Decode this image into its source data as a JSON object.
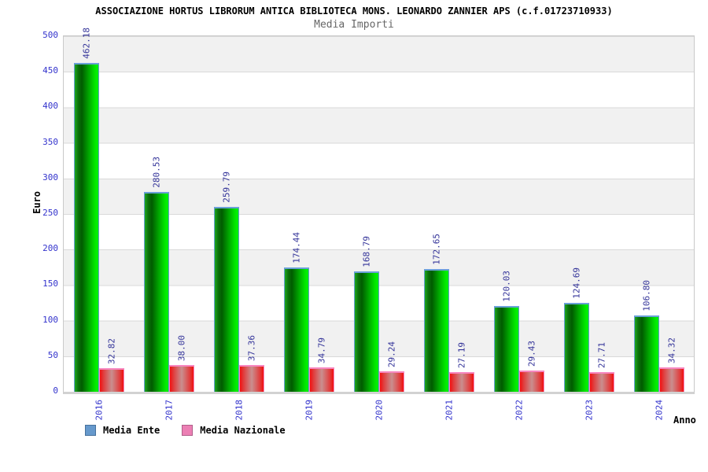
{
  "chart_data": {
    "type": "bar",
    "title": "ASSOCIAZIONE HORTUS LIBRORUM ANTICA BIBLIOTECA MONS. LEONARDO ZANNIER APS (c.f.01723710933)",
    "subtitle": "Media Importi",
    "categories": [
      "2016",
      "2017",
      "2018",
      "2019",
      "2020",
      "2021",
      "2022",
      "2023",
      "2024"
    ],
    "series": [
      {
        "name": "Media Ente",
        "values": [
          462.18,
          280.53,
          259.79,
          174.44,
          168.79,
          172.65,
          120.03,
          124.69,
          106.8
        ],
        "bar_color": "#00c800",
        "legend_swatch": "#6699cc"
      },
      {
        "name": "Media Nazionale",
        "values": [
          32.82,
          38.0,
          37.36,
          34.79,
          29.24,
          27.19,
          29.43,
          27.71,
          34.32
        ],
        "bar_color": "#e04040",
        "legend_swatch": "#ec7fb4"
      }
    ],
    "xlabel": "Anno",
    "ylabel": "Euro",
    "ylim": [
      0,
      500
    ],
    "ytick_step": 50,
    "value_label_format": "%.2f",
    "value_label_rotation": "vertical",
    "grid": "horizontal-bands-alternating",
    "legend_position": "bottom-left",
    "colors": {
      "tick_label": "#3333cc",
      "value_label": "#333399",
      "title": "#000000",
      "subtitle": "#666666",
      "band_gray": "#f1f1f1",
      "gridline": "#d9d9d9"
    }
  }
}
